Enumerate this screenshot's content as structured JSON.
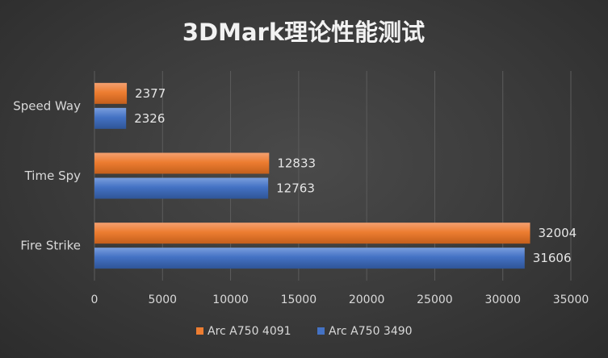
{
  "chart_data": {
    "type": "bar",
    "orientation": "horizontal",
    "title": "3DMark理论性能测试",
    "categories": [
      "Speed Way",
      "Time Spy",
      "Fire Strike"
    ],
    "series": [
      {
        "name": "Arc A750 4091",
        "color": "#ED7D31",
        "values": [
          2377,
          12833,
          32004
        ]
      },
      {
        "name": "Arc A750 3490",
        "color": "#4472C4",
        "values": [
          2326,
          12763,
          31606
        ]
      }
    ],
    "xlim": [
      0,
      35000
    ],
    "xticks": [
      "0",
      "5000",
      "10000",
      "15000",
      "20000",
      "25000",
      "30000",
      "35000"
    ],
    "grid": true,
    "legend_position": "bottom"
  }
}
